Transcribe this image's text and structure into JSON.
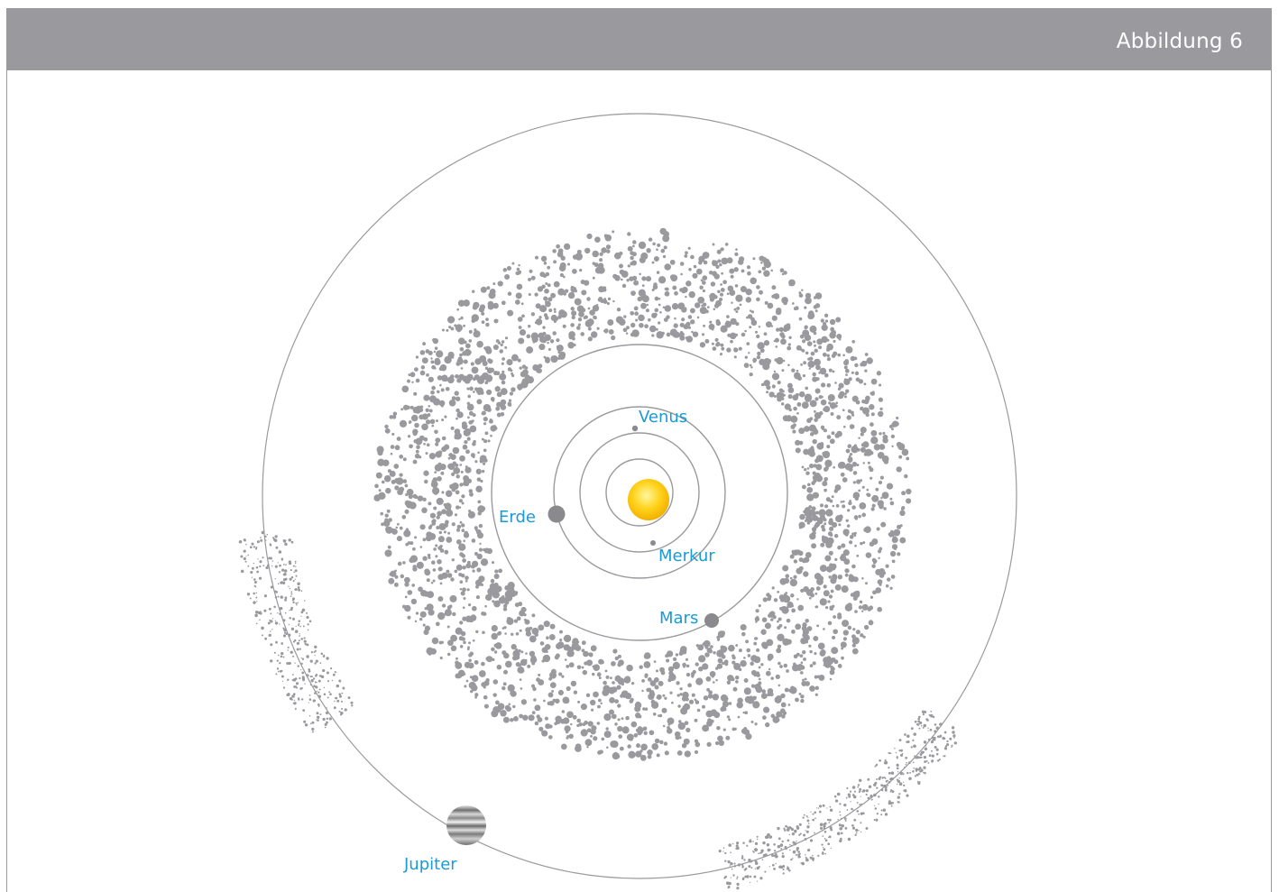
{
  "header": {
    "title": "Abbildung 6"
  },
  "colors": {
    "header_bg": "#9a9a9e",
    "label": "#1a9ad6",
    "orbit": "#9a9a9e",
    "asteroid": "#9a9a9e",
    "planet": "#8a8a8e",
    "sun_center": "#fff7a0",
    "sun_edge": "#f2b600"
  },
  "labels": {
    "venus": "Venus",
    "erde": "Erde",
    "merkur": "Merkur",
    "mars": "Mars",
    "jupiter": "Jupiter"
  }
}
